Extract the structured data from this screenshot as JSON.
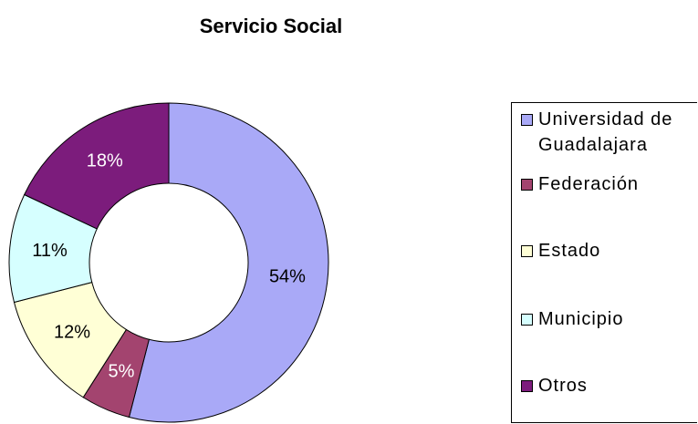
{
  "chart_data": {
    "type": "donut",
    "title": "Servicio Social",
    "categories": [
      "Universidad de Guadalajara",
      "Federación",
      "Estado",
      "Municipio",
      "Otros"
    ],
    "values": [
      54,
      5,
      12,
      11,
      18
    ],
    "value_labels": [
      "54%",
      "5%",
      "12%",
      "11%",
      "18%"
    ],
    "colors": [
      "#a9a9f7",
      "#a3446f",
      "#ffffd6",
      "#d6ffff",
      "#7c1c7c"
    ],
    "label_colors": [
      "#000000",
      "#ffffff",
      "#000000",
      "#000000",
      "#ffffff"
    ],
    "legend": "right"
  }
}
